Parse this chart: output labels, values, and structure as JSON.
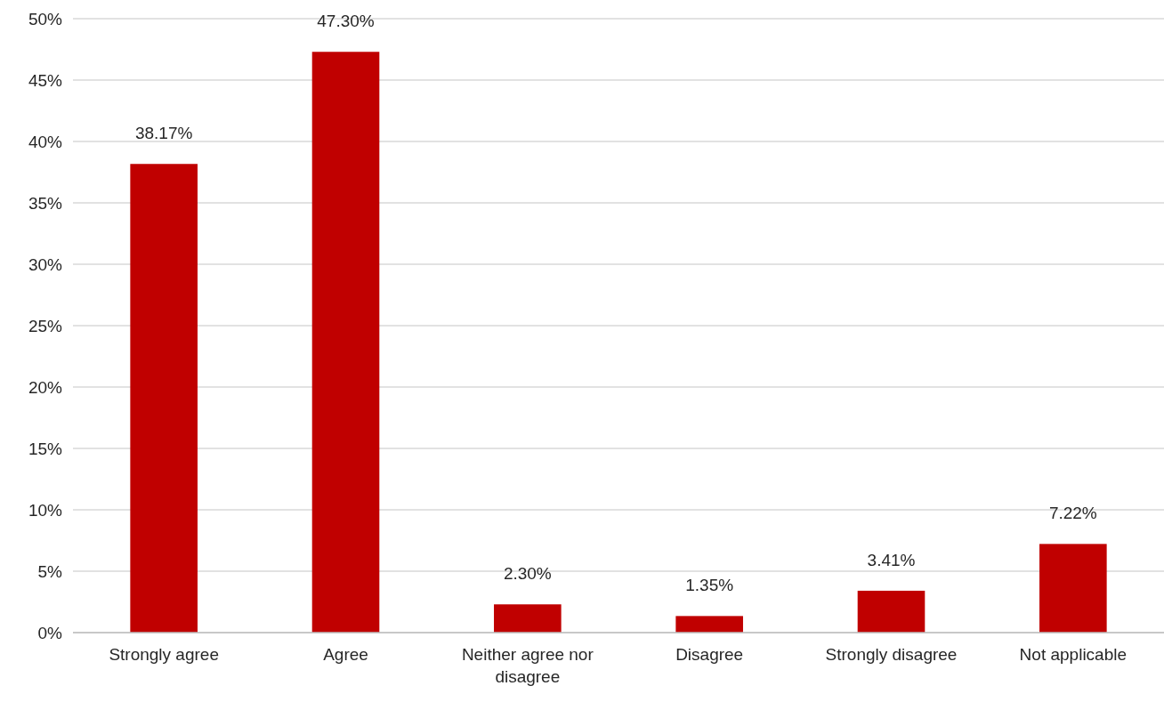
{
  "chart_data": {
    "type": "bar",
    "categories": [
      "Strongly agree",
      "Agree",
      "Neither agree nor disagree",
      "Disagree",
      "Strongly disagree",
      "Not applicable"
    ],
    "values": [
      38.17,
      47.3,
      2.3,
      1.35,
      3.41,
      7.22
    ],
    "value_labels": [
      "38.17%",
      "47.30%",
      "2.30%",
      "1.35%",
      "3.41%",
      "7.22%"
    ],
    "color": "#c00000",
    "ylim": [
      0,
      50
    ],
    "yticks": [
      {
        "value": 0,
        "label": "0%"
      },
      {
        "value": 5,
        "label": "5%"
      },
      {
        "value": 10,
        "label": "10%"
      },
      {
        "value": 15,
        "label": "15%"
      },
      {
        "value": 20,
        "label": "20%"
      },
      {
        "value": 25,
        "label": "25%"
      },
      {
        "value": 30,
        "label": "30%"
      },
      {
        "value": 35,
        "label": "35%"
      },
      {
        "value": 40,
        "label": "40%"
      },
      {
        "value": 45,
        "label": "45%"
      },
      {
        "value": 50,
        "label": "50%"
      }
    ],
    "grid": "y"
  }
}
